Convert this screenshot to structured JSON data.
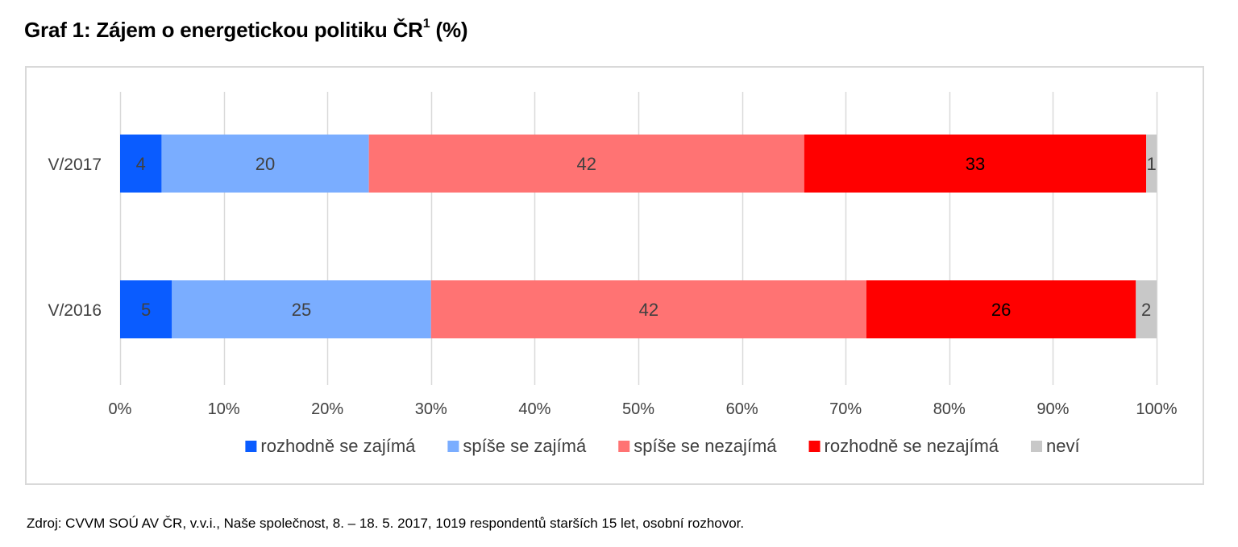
{
  "title": {
    "main": "Graf 1: Zájem o energetickou politiku ČR",
    "sup": "1",
    "suffix": "(%)"
  },
  "source": "Zdroj: CVVM SOÚ AV ČR, v.v.i., Naše společnost, 8. – 18. 5. 2017, 1019 respondentů starších 15 let, osobní rozhovor.",
  "chart_data": {
    "type": "bar",
    "orientation": "horizontal",
    "stacked": true,
    "percent_stacked": true,
    "title": "Graf 1: Zájem o energetickou politiku ČR¹ (%)",
    "categories": [
      "V/2017",
      "V/2016"
    ],
    "series": [
      {
        "name": "rozhodně se zajímá",
        "color": "#0a5cff",
        "label_color": "#404040",
        "values": [
          4,
          5
        ]
      },
      {
        "name": "spíše se zajímá",
        "color": "#7aadff",
        "label_color": "#404040",
        "values": [
          20,
          25
        ]
      },
      {
        "name": "spíše se nezajímá",
        "color": "#ff7373",
        "label_color": "#404040",
        "values": [
          42,
          42
        ]
      },
      {
        "name": "rozhodně se nezajímá",
        "color": "#ff0000",
        "label_color": "#000000",
        "values": [
          33,
          26
        ]
      },
      {
        "name": "neví",
        "color": "#c8c8c8",
        "label_color": "#404040",
        "values": [
          1,
          2
        ]
      }
    ],
    "xlim": [
      0,
      100
    ],
    "xticks": [
      "0%",
      "10%",
      "20%",
      "30%",
      "40%",
      "50%",
      "60%",
      "70%",
      "80%",
      "90%",
      "100%"
    ],
    "grid": true,
    "legend": "bottom"
  }
}
